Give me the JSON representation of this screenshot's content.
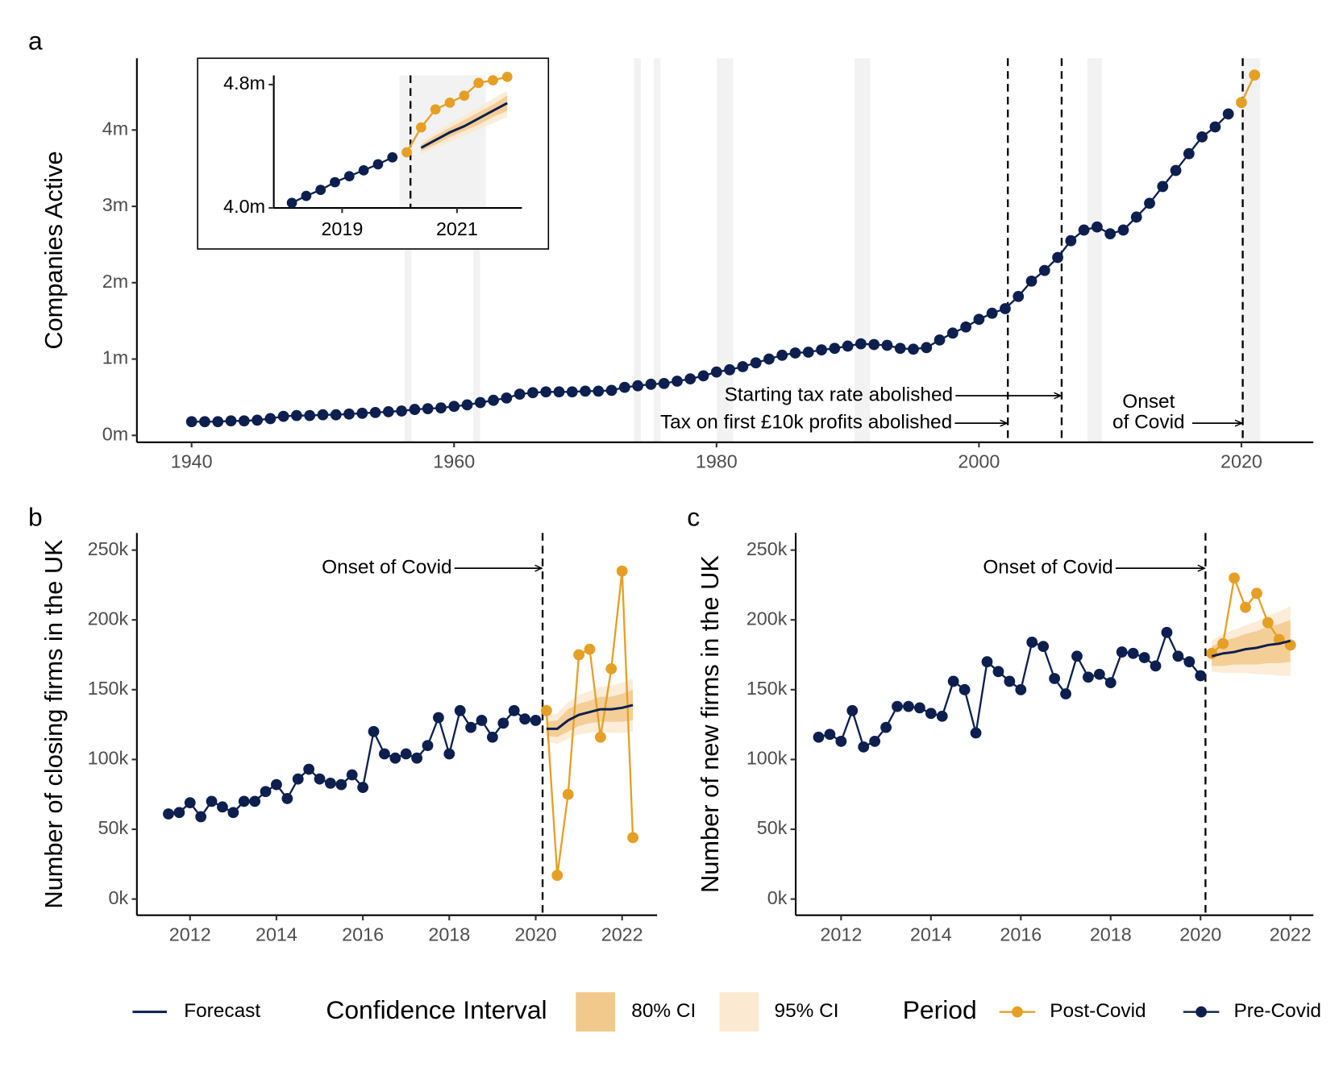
{
  "chart_data": [
    {
      "type": "line",
      "panel_label": "a",
      "ylabel": "Companies Active",
      "xlim": [
        1935.83,
        2025.48
      ],
      "ylim": [
        -0.09,
        4.94
      ],
      "xticks": [
        1940,
        1960,
        1980,
        2000,
        2020
      ],
      "yticks": [
        {
          "value": 0,
          "label": "0m"
        },
        {
          "value": 1,
          "label": "1m"
        },
        {
          "value": 2,
          "label": "2m"
        },
        {
          "value": 3,
          "label": "3m"
        },
        {
          "value": 4,
          "label": "4m"
        }
      ],
      "shade_color": "#f2f2f2",
      "shaded": [
        [
          1956.23,
          1956.76
        ],
        [
          1961.45,
          1961.97
        ],
        [
          1973.71,
          1974.23
        ],
        [
          1975.21,
          1975.73
        ],
        [
          1980.03,
          1981.27
        ],
        [
          1990.53,
          1991.7
        ],
        [
          2008.26,
          2009.37
        ],
        [
          2020.0,
          2021.43
        ]
      ],
      "vlines": [
        2002.2,
        2006.3,
        2020.1
      ],
      "annotations": [
        {
          "text": "Starting tax rate abolished",
          "x": 2006.3,
          "y": 0.52
        },
        {
          "text": "Tax on first £10k profits abolished",
          "x": 2002.2,
          "y": 0.16
        },
        {
          "text": [
            "Onset",
            "of Covid"
          ],
          "x": 2020.1,
          "y": 0.16
        }
      ],
      "series": [
        {
          "name": "Pre-Covid",
          "color": "#0c1f4f",
          "markers": true,
          "x": [
            1940,
            1941,
            1942,
            1943,
            1944,
            1945,
            1946,
            1947,
            1948,
            1949,
            1950,
            1951,
            1952,
            1953,
            1954,
            1955,
            1956,
            1957,
            1958,
            1959,
            1960,
            1961,
            1962,
            1963,
            1964,
            1965,
            1966,
            1967,
            1968,
            1969,
            1970,
            1971,
            1972,
            1973,
            1974,
            1975,
            1976,
            1977,
            1978,
            1979,
            1980,
            1981,
            1982,
            1983,
            1984,
            1985,
            1986,
            1987,
            1988,
            1989,
            1990,
            1991,
            1992,
            1993,
            1994,
            1995,
            1996,
            1997,
            1998,
            1999,
            2000,
            2001,
            2002,
            2003,
            2004,
            2005,
            2006,
            2007,
            2008,
            2009,
            2010,
            2011,
            2012,
            2013,
            2014,
            2015,
            2016,
            2017,
            2018,
            2019
          ],
          "values": [
            0.18,
            0.18,
            0.18,
            0.19,
            0.19,
            0.2,
            0.22,
            0.25,
            0.26,
            0.26,
            0.27,
            0.27,
            0.28,
            0.29,
            0.3,
            0.31,
            0.32,
            0.34,
            0.35,
            0.36,
            0.38,
            0.4,
            0.43,
            0.46,
            0.49,
            0.54,
            0.56,
            0.57,
            0.57,
            0.57,
            0.58,
            0.58,
            0.59,
            0.63,
            0.65,
            0.67,
            0.68,
            0.71,
            0.74,
            0.78,
            0.83,
            0.86,
            0.9,
            0.95,
            1.0,
            1.05,
            1.08,
            1.09,
            1.12,
            1.14,
            1.17,
            1.2,
            1.19,
            1.18,
            1.14,
            1.13,
            1.15,
            1.25,
            1.34,
            1.42,
            1.52,
            1.6,
            1.66,
            1.82,
            2.02,
            2.16,
            2.33,
            2.55,
            2.69,
            2.73,
            2.64,
            2.69,
            2.86,
            3.04,
            3.26,
            3.47,
            3.69,
            3.91,
            4.04,
            4.21
          ]
        },
        {
          "name": "Post-Covid",
          "color": "#e69f25",
          "markers": true,
          "x": [
            2020,
            2021
          ],
          "values": [
            4.36,
            4.72
          ]
        }
      ]
    },
    {
      "type": "line",
      "xlim": [
        2017.81,
        2022.13
      ],
      "ylim": [
        4.0,
        4.86
      ],
      "xticks": [
        2019,
        2021
      ],
      "yticks": [
        {
          "value": 4.0,
          "label": "4.0m"
        },
        {
          "value": 4.8,
          "label": "4.8m"
        }
      ],
      "shade_color": "#f2f2f2",
      "shaded": [
        [
          2020.0,
          2021.5
        ]
      ],
      "vlines": [
        2020.19
      ],
      "series": [
        {
          "name": "Pre-Covid",
          "color": "#0c1f4f",
          "markers": true,
          "x": [
            2018.125,
            2018.375,
            2018.625,
            2018.875,
            2019.125,
            2019.375,
            2019.625,
            2019.875
          ],
          "values": [
            4.033,
            4.078,
            4.117,
            4.167,
            4.206,
            4.244,
            4.283,
            4.328
          ]
        },
        {
          "name": "Post-Covid",
          "color": "#e69f25",
          "markers": true,
          "x": [
            2020.125,
            2020.375,
            2020.625,
            2020.875,
            2021.125,
            2021.375,
            2021.625,
            2021.875
          ],
          "values": [
            4.361,
            4.522,
            4.639,
            4.683,
            4.728,
            4.811,
            4.828,
            4.85
          ]
        },
        {
          "name": "Forecast",
          "color": "#0c1f4f",
          "markers": false,
          "x": [
            2020.375,
            2020.625,
            2020.875,
            2021.125,
            2021.375,
            2021.625,
            2021.875
          ],
          "values": [
            4.39,
            4.44,
            4.49,
            4.53,
            4.58,
            4.63,
            4.68
          ]
        }
      ],
      "intervals": [
        {
          "name": "95% CI",
          "color": "#fbe9d1",
          "lower": [
            4.35,
            4.39,
            4.43,
            4.47,
            4.51,
            4.55,
            4.59
          ],
          "upper": [
            4.43,
            4.49,
            4.55,
            4.6,
            4.65,
            4.71,
            4.76
          ]
        },
        {
          "name": "80% CI",
          "color": "#f2c98c",
          "lower": [
            4.37,
            4.41,
            4.46,
            4.5,
            4.54,
            4.59,
            4.63
          ],
          "upper": [
            4.41,
            4.47,
            4.52,
            4.57,
            4.62,
            4.67,
            4.73
          ]
        }
      ]
    },
    {
      "type": "line",
      "panel_label": "b",
      "ylabel": "Number of closing firms in the UK",
      "xlim": [
        2010.77,
        2022.81
      ],
      "ylim": [
        -11.6,
        262.3
      ],
      "xticks": [
        2012,
        2014,
        2016,
        2018,
        2020,
        2022
      ],
      "yticks": [
        {
          "value": 0,
          "label": "0k"
        },
        {
          "value": 50,
          "label": "50k"
        },
        {
          "value": 100,
          "label": "100k"
        },
        {
          "value": 150,
          "label": "150k"
        },
        {
          "value": 200,
          "label": "200k"
        },
        {
          "value": 250,
          "label": "250k"
        }
      ],
      "vlines": [
        2020.16
      ],
      "annotations": [
        {
          "text": "Onset of Covid",
          "x": 2020.16,
          "y": 237
        }
      ],
      "series": [
        {
          "name": "Pre-Covid",
          "color": "#0c1f4f",
          "markers": true,
          "x": [
            2011.5,
            2011.75,
            2012,
            2012.25,
            2012.5,
            2012.75,
            2013,
            2013.25,
            2013.5,
            2013.75,
            2014,
            2014.25,
            2014.5,
            2014.75,
            2015,
            2015.25,
            2015.5,
            2015.75,
            2016,
            2016.25,
            2016.5,
            2016.75,
            2017,
            2017.25,
            2017.5,
            2017.75,
            2018,
            2018.25,
            2018.5,
            2018.75,
            2019,
            2019.25,
            2019.5,
            2019.75,
            2020
          ],
          "values": [
            61,
            62,
            69,
            59,
            70,
            66,
            62,
            70,
            70,
            77,
            82,
            72,
            86,
            93,
            86,
            83,
            82,
            89,
            80,
            120,
            104,
            101,
            104,
            101,
            110,
            130,
            104,
            135,
            123,
            128,
            116,
            126,
            135,
            129,
            128
          ]
        },
        {
          "name": "Post-Covid",
          "color": "#e69f25",
          "markers": true,
          "x": [
            2020.25,
            2020.5,
            2020.75,
            2021,
            2021.25,
            2021.5,
            2021.75,
            2022,
            2022.25
          ],
          "values": [
            135,
            17,
            75,
            175,
            179,
            116,
            165,
            235,
            44
          ]
        },
        {
          "name": "Forecast",
          "color": "#0c1f4f",
          "markers": false,
          "x": [
            2020.25,
            2020.5,
            2020.75,
            2021,
            2021.25,
            2021.5,
            2021.75,
            2022,
            2022.25
          ],
          "values": [
            122,
            122,
            128,
            132,
            134,
            136,
            136,
            137,
            139
          ]
        }
      ],
      "intervals": [
        {
          "name": "95% CI",
          "color": "#fbe9d1",
          "lower": [
            113,
            111,
            115,
            118,
            119,
            120,
            119,
            119,
            120
          ],
          "upper": [
            131,
            133,
            141,
            146,
            149,
            152,
            153,
            155,
            158
          ]
        },
        {
          "name": "80% CI",
          "color": "#f2c98c",
          "lower": [
            117,
            116,
            120,
            124,
            126,
            127,
            127,
            127,
            128
          ],
          "upper": [
            127,
            128,
            136,
            140,
            142,
            145,
            145,
            147,
            150
          ]
        }
      ]
    },
    {
      "type": "line",
      "panel_label": "c",
      "ylabel": "Number of new firms in the UK",
      "xlim": [
        2010.99,
        2022.51
      ],
      "ylim": [
        -11.6,
        262.3
      ],
      "xticks": [
        2012,
        2014,
        2016,
        2018,
        2020,
        2022
      ],
      "yticks": [
        {
          "value": 0,
          "label": "0k"
        },
        {
          "value": 50,
          "label": "50k"
        },
        {
          "value": 100,
          "label": "100k"
        },
        {
          "value": 150,
          "label": "150k"
        },
        {
          "value": 200,
          "label": "200k"
        },
        {
          "value": 250,
          "label": "250k"
        }
      ],
      "vlines": [
        2020.11
      ],
      "annotations": [
        {
          "text": "Onset of Covid",
          "x": 2020.11,
          "y": 237
        }
      ],
      "series": [
        {
          "name": "Pre-Covid",
          "color": "#0c1f4f",
          "markers": true,
          "x": [
            2011.5,
            2011.75,
            2012,
            2012.25,
            2012.5,
            2012.75,
            2013,
            2013.25,
            2013.5,
            2013.75,
            2014,
            2014.25,
            2014.5,
            2014.75,
            2015,
            2015.25,
            2015.5,
            2015.75,
            2016,
            2016.25,
            2016.5,
            2016.75,
            2017,
            2017.25,
            2017.5,
            2017.75,
            2018,
            2018.25,
            2018.5,
            2018.75,
            2019,
            2019.25,
            2019.5,
            2019.75,
            2020
          ],
          "values": [
            116,
            118,
            113,
            135,
            109,
            113,
            123,
            138,
            138,
            137,
            133,
            131,
            156,
            150,
            119,
            170,
            163,
            156,
            150,
            184,
            181,
            158,
            147,
            174,
            159,
            161,
            155,
            177,
            176,
            173,
            167,
            191,
            174,
            170,
            160
          ]
        },
        {
          "name": "Post-Covid",
          "color": "#e69f25",
          "markers": true,
          "x": [
            2020.25,
            2020.5,
            2020.75,
            2021,
            2021.25,
            2021.5,
            2021.75,
            2022
          ],
          "values": [
            176,
            183,
            230,
            209,
            219,
            198,
            186,
            182
          ]
        },
        {
          "name": "Forecast",
          "color": "#0c1f4f",
          "markers": false,
          "x": [
            2020.25,
            2020.5,
            2020.75,
            2021,
            2021.25,
            2021.5,
            2021.75,
            2022
          ],
          "values": [
            174,
            176,
            177,
            179,
            180,
            182,
            183,
            185
          ]
        }
      ],
      "intervals": [
        {
          "name": "95% CI",
          "color": "#fbe9d1",
          "lower": [
            163,
            162,
            162,
            162,
            161,
            161,
            160,
            160
          ],
          "upper": [
            185,
            190,
            193,
            196,
            199,
            203,
            206,
            210
          ]
        },
        {
          "name": "80% CI",
          "color": "#f2c98c",
          "lower": [
            167,
            167,
            168,
            168,
            168,
            169,
            169,
            170
          ],
          "upper": [
            181,
            185,
            187,
            190,
            192,
            195,
            197,
            200
          ]
        }
      ]
    }
  ],
  "legend": {
    "titles": [
      "Confidence Interval",
      "Period"
    ]
  }
}
